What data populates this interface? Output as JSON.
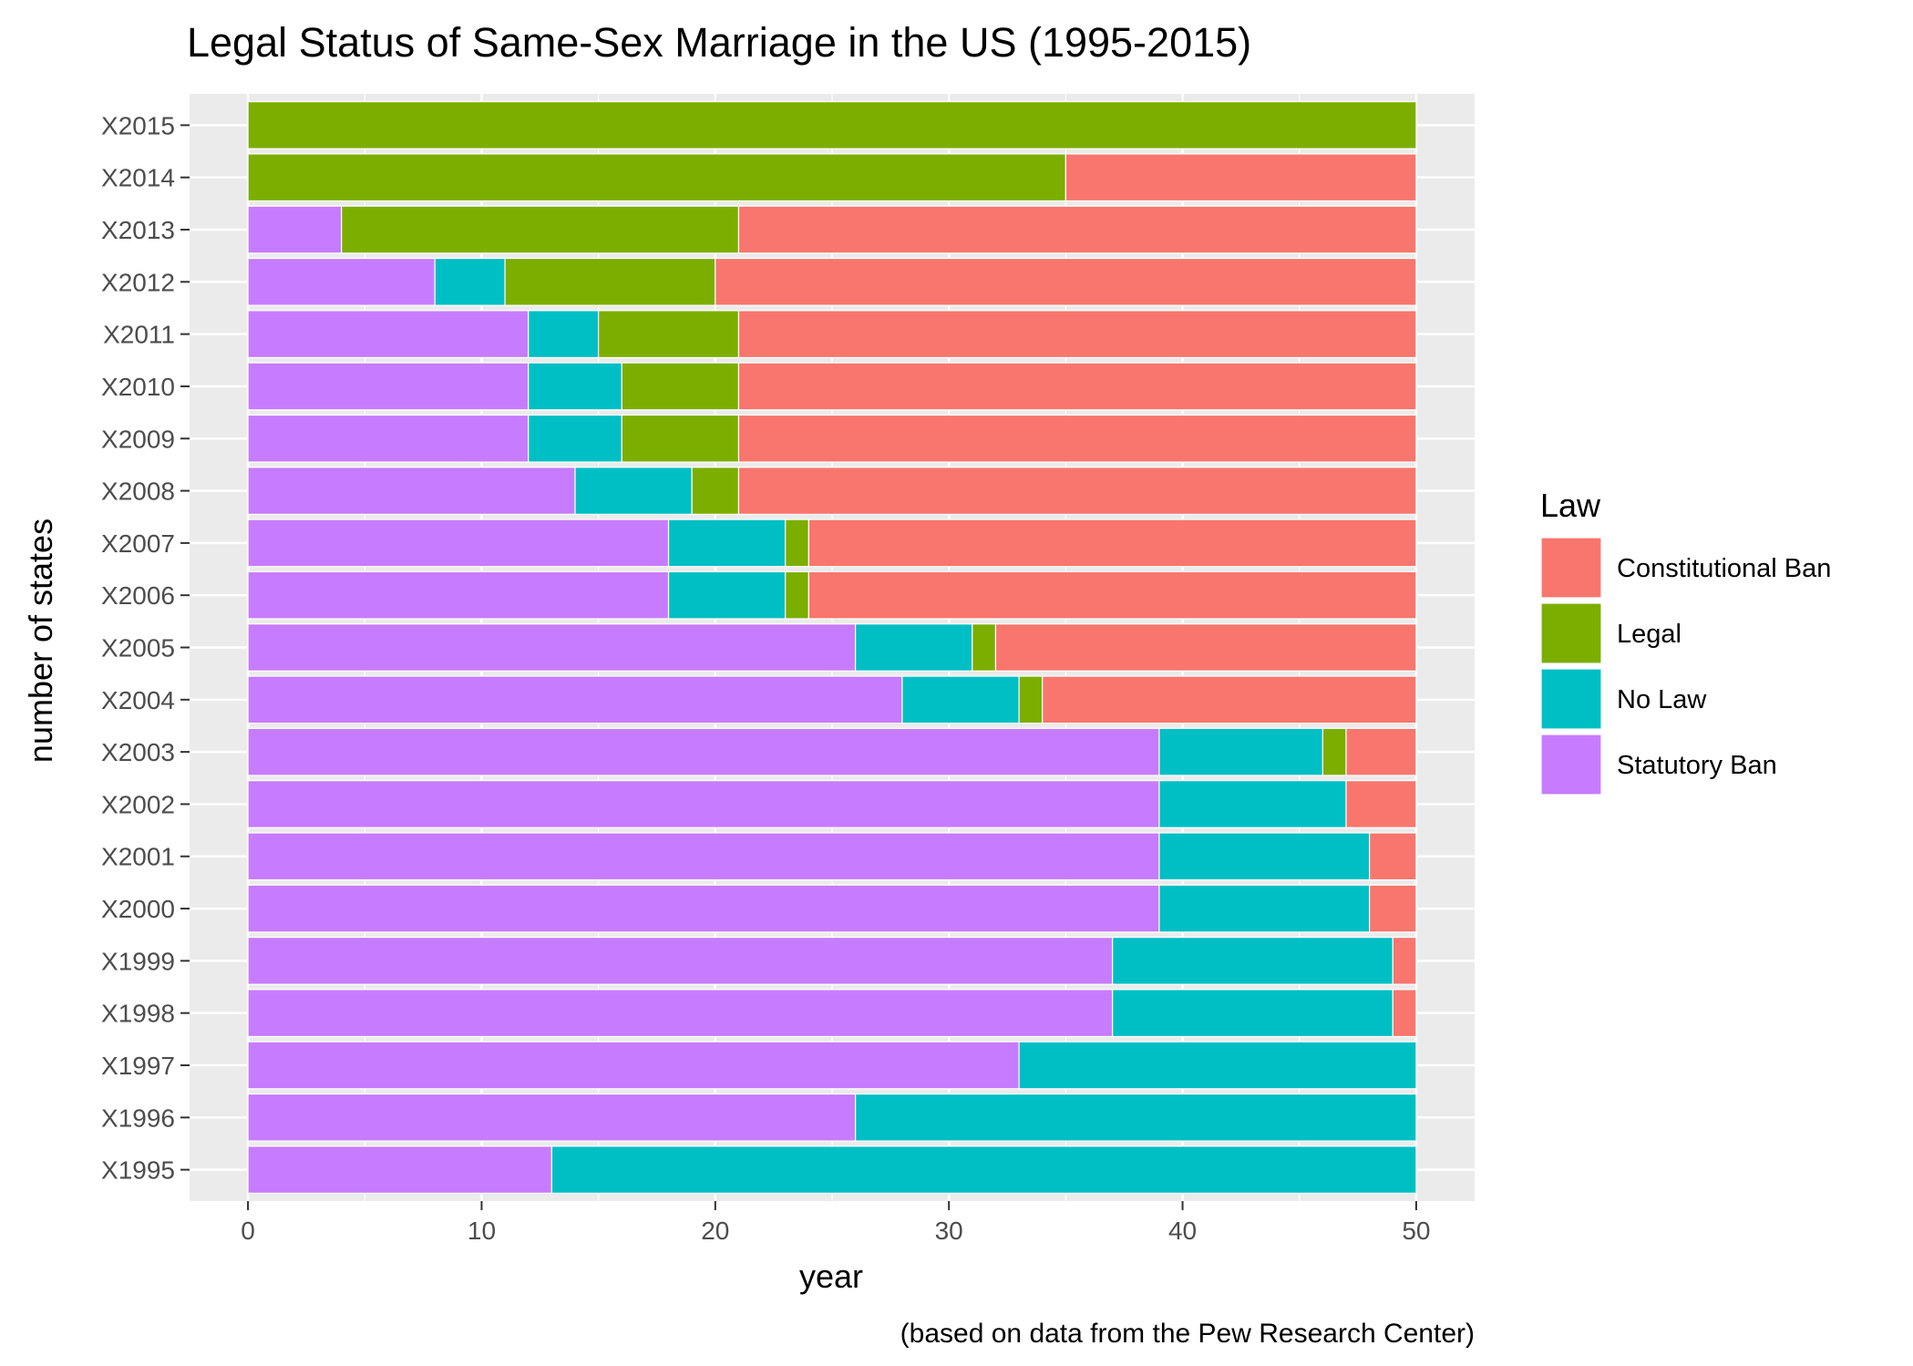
{
  "chart_data": {
    "type": "bar",
    "orientation": "horizontal",
    "stacked": true,
    "title": "Legal Status of Same-Sex Marriage in the US (1995-2015)",
    "xlabel": "year",
    "ylabel": "number of states",
    "caption": "(based on data from the Pew Research Center)",
    "xlim": [
      0,
      50
    ],
    "xticks": [
      0,
      10,
      20,
      30,
      40,
      50
    ],
    "grid": true,
    "legend": {
      "title": "Law",
      "position": "right"
    },
    "categories": [
      "X1995",
      "X1996",
      "X1997",
      "X1998",
      "X1999",
      "X2000",
      "X2001",
      "X2002",
      "X2003",
      "X2004",
      "X2005",
      "X2006",
      "X2007",
      "X2008",
      "X2009",
      "X2010",
      "X2011",
      "X2012",
      "X2013",
      "X2014",
      "X2015"
    ],
    "stack_order": [
      "Statutory Ban",
      "No Law",
      "Legal",
      "Constitutional Ban"
    ],
    "series": [
      {
        "name": "Constitutional Ban",
        "color": "#F8766D",
        "values": [
          0,
          0,
          0,
          1,
          1,
          2,
          2,
          3,
          3,
          16,
          18,
          26,
          26,
          29,
          29,
          29,
          29,
          30,
          29,
          15,
          0
        ]
      },
      {
        "name": "Legal",
        "color": "#7CAE00",
        "values": [
          0,
          0,
          0,
          0,
          0,
          0,
          0,
          0,
          1,
          1,
          1,
          1,
          1,
          2,
          5,
          5,
          6,
          9,
          17,
          35,
          50
        ]
      },
      {
        "name": "No Law",
        "color": "#00BFC4",
        "values": [
          37,
          24,
          17,
          12,
          12,
          9,
          9,
          8,
          7,
          5,
          5,
          5,
          5,
          5,
          4,
          4,
          3,
          3,
          0,
          0,
          0
        ]
      },
      {
        "name": "Statutory Ban",
        "color": "#C77CFF",
        "values": [
          13,
          26,
          33,
          37,
          37,
          39,
          39,
          39,
          39,
          28,
          26,
          18,
          18,
          14,
          12,
          12,
          12,
          8,
          4,
          0,
          0
        ]
      }
    ]
  }
}
